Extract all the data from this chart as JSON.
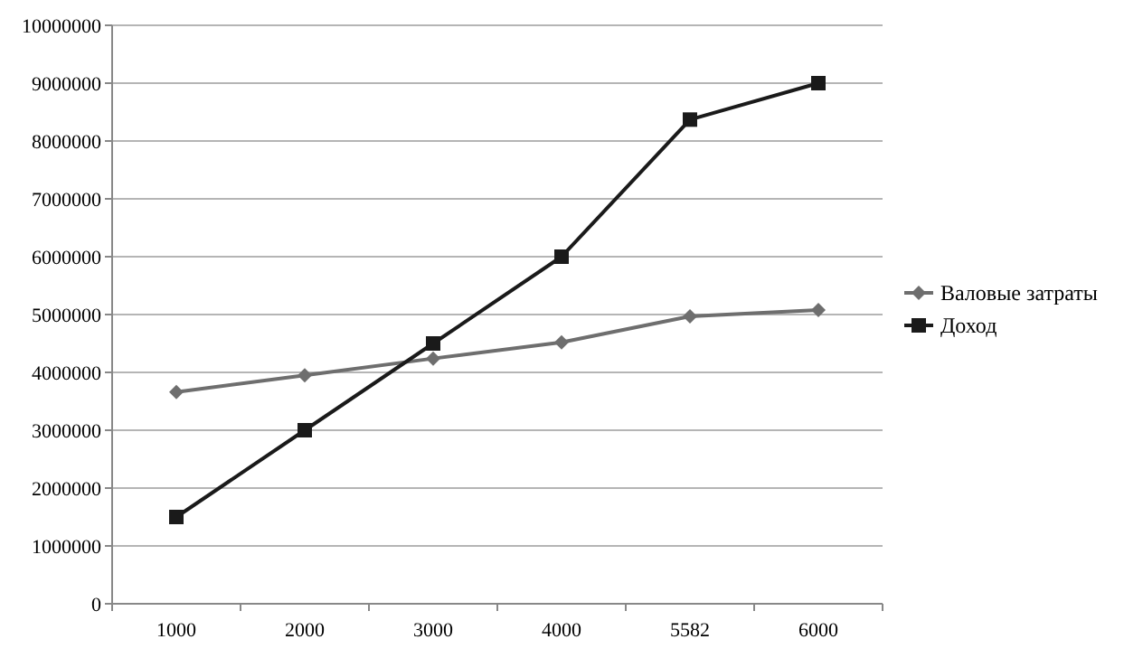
{
  "chart_data": {
    "type": "line",
    "categories": [
      "1000",
      "2000",
      "3000",
      "4000",
      "5582",
      "6000"
    ],
    "series": [
      {
        "name": "Валовые затраты",
        "color": "#6e6e6e",
        "marker": "diamond",
        "values": [
          3660000,
          3950000,
          4240000,
          4520000,
          4970000,
          5080000
        ]
      },
      {
        "name": "Доход",
        "color": "#1a1a1a",
        "marker": "square",
        "values": [
          1500000,
          3000000,
          4500000,
          6000000,
          8370000,
          9000000
        ]
      }
    ],
    "ylim": [
      0,
      10000000
    ],
    "yticks": [
      0,
      1000000,
      2000000,
      3000000,
      4000000,
      5000000,
      6000000,
      7000000,
      8000000,
      9000000,
      10000000
    ],
    "grid": "y",
    "legend": "right"
  }
}
